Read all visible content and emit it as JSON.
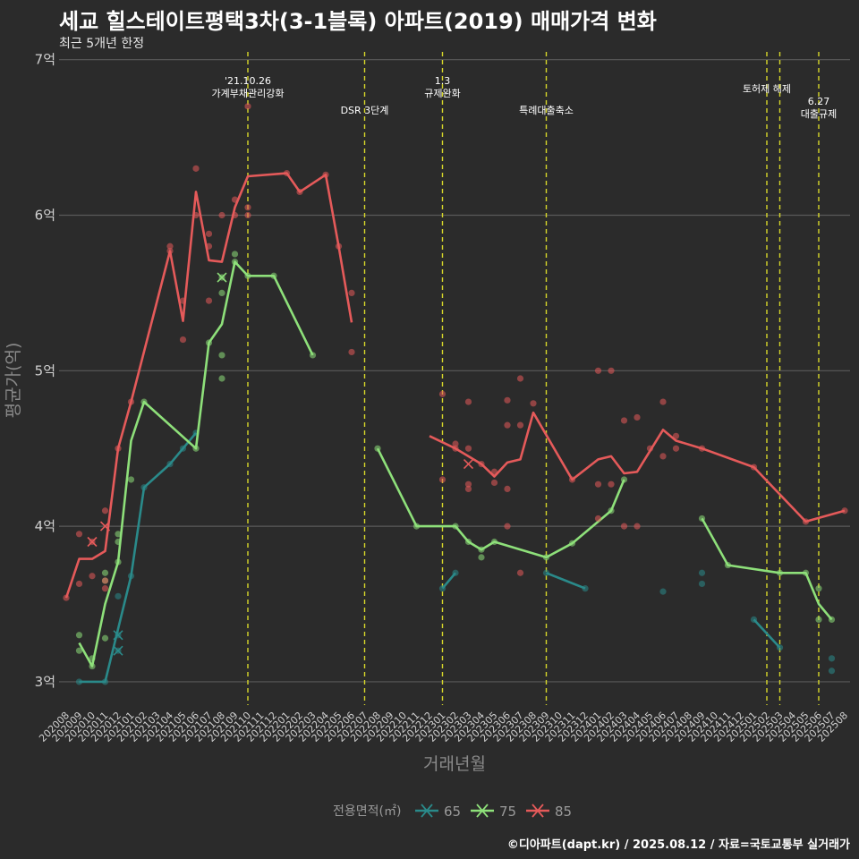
{
  "title": "세교 힐스테이트평택3차(3-1블록) 아파트(2019) 매매가격 변화",
  "subtitle": "최근 5개년 한정",
  "caption": "©디아파트(dapt.kr) / 2025.08.12 / 자료=국토교통부 실거래가",
  "chart_data": {
    "type": "line",
    "xlabel": "거래년월",
    "ylabel": "평균가(억)",
    "ylim": [
      2.85,
      7.05
    ],
    "yticks": [
      3,
      4,
      5,
      6,
      7
    ],
    "ytick_labels": [
      "3억",
      "4억",
      "5억",
      "6억",
      "7억"
    ],
    "x_start": "2020-08",
    "x_end": "2025-08",
    "grid": "horizontal",
    "legend": {
      "title": "전용면적(㎡)",
      "position": "bottom"
    },
    "colors": {
      "65": "#2a8a8a",
      "75": "#8ee07a",
      "85": "#e55a5a",
      "event": "#d8d82a"
    },
    "events": [
      {
        "x": "2021-10",
        "lines": [
          "'21.10.26",
          "가계부채관리강화"
        ],
        "level": 1
      },
      {
        "x": "2022-07",
        "lines": [
          "DSR 3단계"
        ],
        "level": 2
      },
      {
        "x": "2023-01",
        "lines": [
          "1.3",
          "규제완화"
        ],
        "level": 1
      },
      {
        "x": "2023-09",
        "lines": [
          "특례대출축소"
        ],
        "level": 2
      },
      {
        "x": "2025-02",
        "lines": [
          "토허제 해제"
        ],
        "level": 1
      },
      {
        "x": "2025-03",
        "lines": [],
        "level": 1
      },
      {
        "x": "2025-06",
        "lines": [
          "6.27",
          "대출규제"
        ],
        "level": 3
      }
    ],
    "series": [
      {
        "name": "65",
        "line": [
          [
            "2020-09",
            3.0
          ],
          [
            "2020-10",
            3.0
          ],
          [
            "2020-11",
            3.0
          ],
          [
            "2021-01",
            3.68
          ],
          [
            "2021-02",
            4.25
          ],
          [
            "2021-04",
            4.4
          ],
          [
            "2021-05",
            4.5
          ],
          [
            "2021-06",
            4.6
          ],
          [
            "2023-01",
            3.6
          ],
          [
            "2023-02",
            3.7
          ],
          [
            "2023-09",
            3.7
          ],
          [
            "2023-12",
            3.6
          ],
          [
            "2024-06",
            3.58
          ],
          [
            "2025-01",
            3.4
          ],
          [
            "2025-03",
            3.22
          ]
        ],
        "points": [
          [
            "2020-09",
            3.0
          ],
          [
            "2020-11",
            3.0
          ],
          [
            "2020-12",
            3.3
          ],
          [
            "2020-12",
            3.2
          ],
          [
            "2020-12",
            3.55
          ],
          [
            "2021-01",
            3.68
          ],
          [
            "2021-02",
            4.25
          ],
          [
            "2021-04",
            4.4
          ],
          [
            "2021-05",
            4.5
          ],
          [
            "2021-06",
            4.6
          ],
          [
            "2023-01",
            3.6
          ],
          [
            "2023-02",
            3.7
          ],
          [
            "2023-09",
            3.7
          ],
          [
            "2023-12",
            3.6
          ],
          [
            "2024-06",
            3.58
          ],
          [
            "2024-09",
            3.7
          ],
          [
            "2024-09",
            3.63
          ],
          [
            "2025-01",
            3.4
          ],
          [
            "2025-03",
            3.22
          ],
          [
            "2025-07",
            3.15
          ],
          [
            "2025-07",
            3.07
          ]
        ],
        "cancelled": [
          [
            "2020-12",
            3.3
          ],
          [
            "2020-12",
            3.2
          ]
        ]
      },
      {
        "name": "75",
        "line": [
          [
            "2020-09",
            3.25
          ],
          [
            "2020-10",
            3.1
          ],
          [
            "2020-11",
            3.5
          ],
          [
            "2020-12",
            3.77
          ],
          [
            "2021-01",
            4.55
          ],
          [
            "2021-02",
            4.8
          ],
          [
            "2021-06",
            4.5
          ],
          [
            "2021-07",
            5.18
          ],
          [
            "2021-08",
            5.3
          ],
          [
            "2021-09",
            5.7
          ],
          [
            "2021-10",
            5.61
          ],
          [
            "2021-12",
            5.61
          ],
          [
            "2022-03",
            5.1
          ],
          [
            "2022-08",
            4.5
          ],
          [
            "2022-11",
            4.0
          ],
          [
            "2023-02",
            4.0
          ],
          [
            "2023-03",
            3.9
          ],
          [
            "2023-04",
            3.85
          ],
          [
            "2023-05",
            3.9
          ],
          [
            "2023-09",
            3.8
          ],
          [
            "2023-11",
            3.89
          ],
          [
            "2024-02",
            4.1
          ],
          [
            "2024-03",
            4.3
          ],
          [
            "2024-09",
            4.05
          ],
          [
            "2024-11",
            3.75
          ],
          [
            "2025-03",
            3.7
          ],
          [
            "2025-05",
            3.7
          ],
          [
            "2025-06",
            3.5
          ],
          [
            "2025-07",
            3.4
          ]
        ],
        "points": [
          [
            "2020-09",
            3.3
          ],
          [
            "2020-09",
            3.2
          ],
          [
            "2020-10",
            3.1
          ],
          [
            "2020-10",
            3.15
          ],
          [
            "2020-11",
            3.7
          ],
          [
            "2020-11",
            3.28
          ],
          [
            "2020-11",
            3.65
          ],
          [
            "2020-12",
            3.9
          ],
          [
            "2020-12",
            3.95
          ],
          [
            "2020-12",
            3.77
          ],
          [
            "2021-01",
            4.3
          ],
          [
            "2021-02",
            4.8
          ],
          [
            "2021-06",
            4.5
          ],
          [
            "2021-07",
            5.18
          ],
          [
            "2021-08",
            5.1
          ],
          [
            "2021-08",
            4.95
          ],
          [
            "2021-08",
            5.5
          ],
          [
            "2021-08",
            5.6
          ],
          [
            "2021-09",
            5.75
          ],
          [
            "2021-09",
            5.7
          ],
          [
            "2021-10",
            5.61
          ],
          [
            "2021-12",
            5.61
          ],
          [
            "2022-03",
            5.1
          ],
          [
            "2022-08",
            4.5
          ],
          [
            "2022-11",
            4.0
          ],
          [
            "2023-02",
            4.0
          ],
          [
            "2023-03",
            3.9
          ],
          [
            "2023-04",
            3.85
          ],
          [
            "2023-04",
            3.8
          ],
          [
            "2023-05",
            3.9
          ],
          [
            "2023-09",
            3.8
          ],
          [
            "2023-11",
            3.89
          ],
          [
            "2024-02",
            4.1
          ],
          [
            "2024-03",
            4.3
          ],
          [
            "2024-09",
            4.05
          ],
          [
            "2024-11",
            3.75
          ],
          [
            "2025-03",
            3.7
          ],
          [
            "2025-05",
            3.7
          ],
          [
            "2025-06",
            3.6
          ],
          [
            "2025-06",
            3.4
          ],
          [
            "2025-07",
            3.4
          ]
        ],
        "cancelled": [
          [
            "2021-08",
            5.6
          ]
        ]
      },
      {
        "name": "85",
        "line": [
          [
            "2020-08",
            3.54
          ],
          [
            "2020-09",
            3.79
          ],
          [
            "2020-10",
            3.79
          ],
          [
            "2020-11",
            3.84
          ],
          [
            "2020-12",
            4.5
          ],
          [
            "2021-01",
            4.8
          ],
          [
            "2021-04",
            5.77
          ],
          [
            "2021-05",
            5.32
          ],
          [
            "2021-06",
            6.15
          ],
          [
            "2021-07",
            5.71
          ],
          [
            "2021-08",
            5.7
          ],
          [
            "2021-09",
            6.05
          ],
          [
            "2021-10",
            6.25
          ],
          [
            "2022-01",
            6.27
          ],
          [
            "2022-02",
            6.15
          ],
          [
            "2022-04",
            6.26
          ],
          [
            "2022-05",
            5.8
          ],
          [
            "2022-06",
            5.31
          ],
          [
            "2022-12",
            4.58
          ],
          [
            "2023-02",
            4.5
          ],
          [
            "2023-04",
            4.4
          ],
          [
            "2023-05",
            4.32
          ],
          [
            "2023-06",
            4.41
          ],
          [
            "2023-07",
            4.43
          ],
          [
            "2023-08",
            4.73
          ],
          [
            "2023-11",
            4.3
          ],
          [
            "2024-01",
            4.43
          ],
          [
            "2024-02",
            4.45
          ],
          [
            "2024-03",
            4.34
          ],
          [
            "2024-04",
            4.35
          ],
          [
            "2024-06",
            4.62
          ],
          [
            "2024-07",
            4.55
          ],
          [
            "2024-09",
            4.5
          ],
          [
            "2025-01",
            4.38
          ],
          [
            "2025-05",
            4.03
          ],
          [
            "2025-08",
            4.1
          ]
        ],
        "points": [
          [
            "2020-08",
            3.54
          ],
          [
            "2020-09",
            3.95
          ],
          [
            "2020-09",
            3.63
          ],
          [
            "2020-10",
            3.9
          ],
          [
            "2020-10",
            3.68
          ],
          [
            "2020-11",
            4.1
          ],
          [
            "2020-11",
            3.65
          ],
          [
            "2020-11",
            3.6
          ],
          [
            "2020-12",
            4.5
          ],
          [
            "2021-01",
            4.8
          ],
          [
            "2021-04",
            5.8
          ],
          [
            "2021-04",
            5.77
          ],
          [
            "2021-05",
            5.2
          ],
          [
            "2021-05",
            5.45
          ],
          [
            "2021-06",
            6.3
          ],
          [
            "2021-06",
            6.0
          ],
          [
            "2021-07",
            5.88
          ],
          [
            "2021-07",
            5.45
          ],
          [
            "2021-07",
            5.8
          ],
          [
            "2021-08",
            6.0
          ],
          [
            "2021-09",
            6.1
          ],
          [
            "2021-09",
            6.0
          ],
          [
            "2021-10",
            6.7
          ],
          [
            "2021-10",
            6.05
          ],
          [
            "2021-10",
            6.0
          ],
          [
            "2022-01",
            6.27
          ],
          [
            "2022-02",
            6.15
          ],
          [
            "2022-04",
            6.26
          ],
          [
            "2022-05",
            5.8
          ],
          [
            "2022-06",
            5.5
          ],
          [
            "2022-06",
            5.12
          ],
          [
            "2023-01",
            4.85
          ],
          [
            "2023-01",
            4.3
          ],
          [
            "2023-02",
            4.53
          ],
          [
            "2023-02",
            4.5
          ],
          [
            "2023-03",
            4.8
          ],
          [
            "2023-03",
            4.5
          ],
          [
            "2023-03",
            4.27
          ],
          [
            "2023-03",
            4.24
          ],
          [
            "2023-04",
            4.4
          ],
          [
            "2023-05",
            4.35
          ],
          [
            "2023-05",
            4.28
          ],
          [
            "2023-06",
            4.81
          ],
          [
            "2023-06",
            4.65
          ],
          [
            "2023-06",
            4.24
          ],
          [
            "2023-06",
            4.0
          ],
          [
            "2023-07",
            4.95
          ],
          [
            "2023-07",
            4.65
          ],
          [
            "2023-07",
            3.7
          ],
          [
            "2023-08",
            4.79
          ],
          [
            "2023-11",
            4.3
          ],
          [
            "2024-01",
            5.0
          ],
          [
            "2024-01",
            4.27
          ],
          [
            "2024-01",
            4.05
          ],
          [
            "2024-02",
            5.0
          ],
          [
            "2024-02",
            4.27
          ],
          [
            "2024-03",
            4.68
          ],
          [
            "2024-03",
            4.0
          ],
          [
            "2024-04",
            4.7
          ],
          [
            "2024-04",
            4.0
          ],
          [
            "2024-05",
            4.5
          ],
          [
            "2024-06",
            4.8
          ],
          [
            "2024-06",
            4.45
          ],
          [
            "2024-07",
            4.58
          ],
          [
            "2024-07",
            4.5
          ],
          [
            "2024-09",
            4.5
          ],
          [
            "2025-01",
            4.38
          ],
          [
            "2025-05",
            4.03
          ],
          [
            "2025-08",
            4.1
          ]
        ],
        "cancelled": [
          [
            "2020-10",
            3.9
          ],
          [
            "2020-11",
            4.0
          ],
          [
            "2023-03",
            4.4
          ]
        ]
      }
    ]
  }
}
